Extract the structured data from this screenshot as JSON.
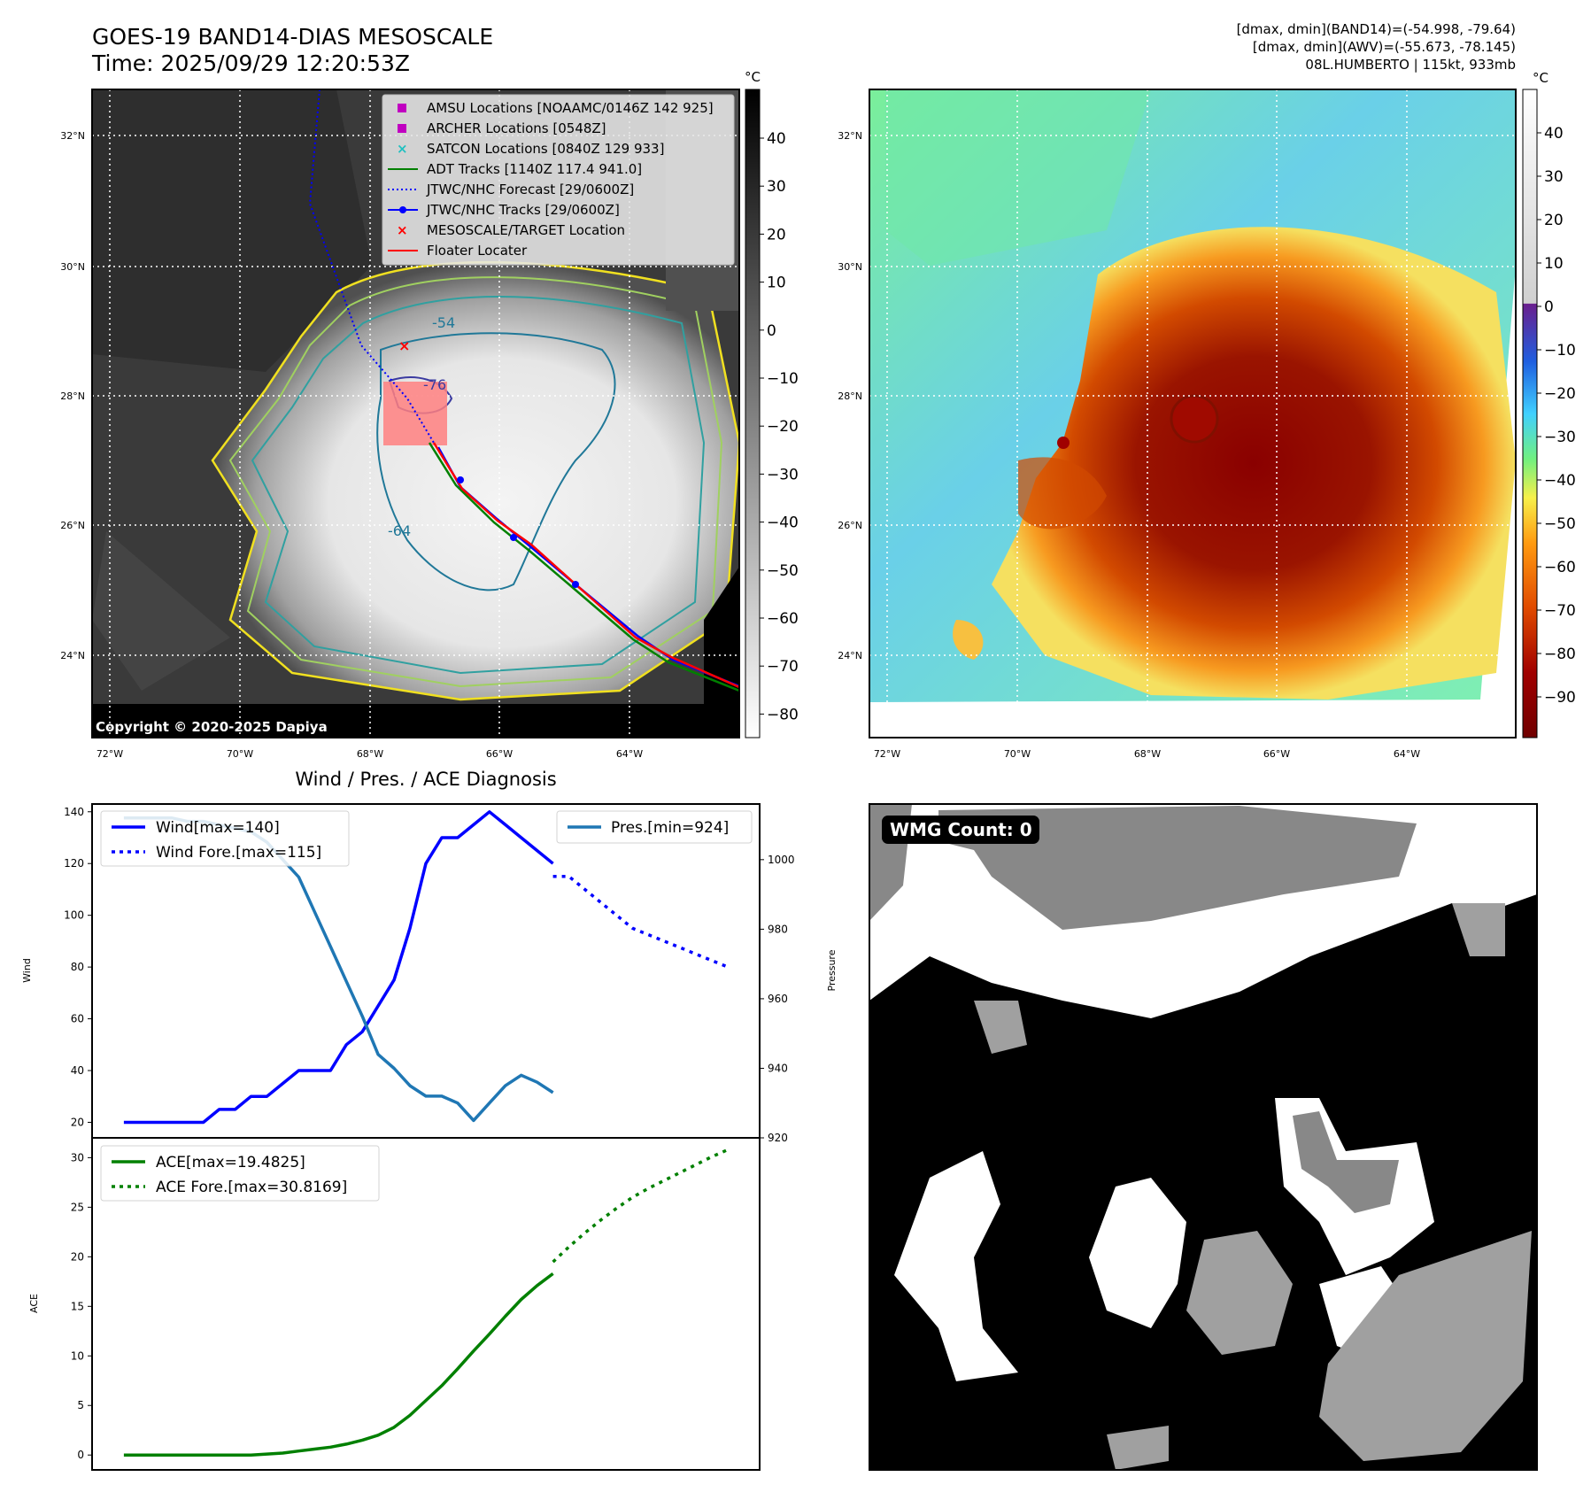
{
  "header": {
    "title_line1": "GOES-19 BAND14-DIAS MESOSCALE",
    "title_line2": "Time: 2025/09/29 12:20:53Z",
    "info_line1": "[dmax, dmin](BAND14)=(-54.998, -79.64)",
    "info_line2": "[dmax, dmin](AWV)=(-55.673, -78.145)",
    "info_line3": "08L.HUMBERTO | 115kt, 933mb",
    "copyright": "Copyright © 2020-2025 Dapiya"
  },
  "map": {
    "lat_ticks": [
      "32°N",
      "30°N",
      "28°N",
      "26°N",
      "24°N"
    ],
    "lon_ticks": [
      "72°W",
      "70°W",
      "68°W",
      "66°W",
      "64°W"
    ],
    "contour_labels": [
      "-54",
      "-76",
      "-64"
    ],
    "legend": [
      {
        "label": "AMSU Locations [NOAAMC/0146Z 142 925]",
        "color": "#c000c0",
        "marker": "square"
      },
      {
        "label": "ARCHER Locations [0548Z]",
        "color": "#c000c0",
        "marker": "square"
      },
      {
        "label": "SATCON Locations [0840Z 129 933]",
        "color": "#20c0c0",
        "marker": "x"
      },
      {
        "label": "ADT Tracks [1140Z 117.4 941.0]",
        "color": "#008000",
        "marker": "line"
      },
      {
        "label": "JTWC/NHC Forecast [29/0600Z]",
        "color": "#0000ff",
        "marker": "dotted"
      },
      {
        "label": "JTWC/NHC Tracks [29/0600Z]",
        "color": "#0000ff",
        "marker": "line-dot"
      },
      {
        "label": "MESOSCALE/TARGET Location",
        "color": "#ff0000",
        "marker": "x"
      },
      {
        "label": "Floater Locater",
        "color": "#ff0000",
        "marker": "line"
      }
    ]
  },
  "colorbar_gray": {
    "unit": "°C",
    "ticks": [
      "40",
      "30",
      "20",
      "10",
      "0",
      "−10",
      "−20",
      "−30",
      "−40",
      "−50",
      "−60",
      "−70",
      "−80"
    ]
  },
  "colorbar_color": {
    "unit": "°C",
    "ticks": [
      "40",
      "30",
      "20",
      "10",
      "0",
      "−10",
      "−20",
      "−30",
      "−40",
      "−50",
      "−60",
      "−70",
      "−80",
      "−90"
    ]
  },
  "wmg": {
    "label": "WMG Count: 0"
  },
  "chart_data": [
    {
      "type": "line",
      "title": "Wind / Pres. / ACE Diagnosis",
      "xlabel": "",
      "ylabel": "Wind",
      "ylabel_right": "Pressure",
      "ylim": [
        14,
        143
      ],
      "ylim_right": [
        920,
        1016
      ],
      "yticks": [
        "20",
        "40",
        "60",
        "80",
        "100",
        "120",
        "140"
      ],
      "yticks_right": [
        "920",
        "940",
        "960",
        "980",
        "1000"
      ],
      "xlim": [
        -2,
        40
      ],
      "series": [
        {
          "name": "Wind[max=140]",
          "color": "#0000ff",
          "style": "solid",
          "axis": "left",
          "x": [
            0,
            2,
            4,
            5,
            6,
            7,
            8,
            9,
            10,
            11,
            12,
            13,
            14,
            15,
            16,
            17,
            18,
            19,
            20,
            21,
            22,
            23,
            24,
            25,
            26,
            27
          ],
          "values": [
            20,
            20,
            20,
            20,
            25,
            25,
            30,
            30,
            35,
            40,
            40,
            40,
            50,
            55,
            65,
            75,
            95,
            120,
            130,
            130,
            135,
            140,
            135,
            130,
            125,
            120
          ]
        },
        {
          "name": "Wind Fore.[max=115]",
          "color": "#0000ff",
          "style": "dotted",
          "axis": "left",
          "x": [
            27,
            28,
            29,
            30,
            32,
            34,
            36,
            38
          ],
          "values": [
            115,
            115,
            110,
            105,
            95,
            90,
            85,
            80
          ]
        },
        {
          "name": "Pres.[min=924]",
          "color": "#1f77b4",
          "style": "solid",
          "axis": "right",
          "x": [
            0,
            1,
            2,
            3,
            4,
            5,
            6,
            7,
            8,
            9,
            10,
            11,
            12,
            13,
            14,
            15,
            16,
            17,
            18,
            19,
            20,
            21,
            22,
            23,
            24,
            25,
            26,
            27
          ],
          "values": [
            1012,
            1012,
            1012,
            1012,
            1011,
            1011,
            1010,
            1009,
            1008,
            1005,
            1000,
            995,
            985,
            975,
            965,
            955,
            944,
            940,
            935,
            932,
            932,
            930,
            925,
            930,
            935,
            938,
            936,
            933
          ]
        }
      ]
    },
    {
      "type": "line",
      "xlabel": "",
      "ylabel": "ACE",
      "ylim": [
        -1.5,
        32
      ],
      "yticks": [
        "0",
        "5",
        "10",
        "15",
        "20",
        "25",
        "30"
      ],
      "xlim": [
        -2,
        40
      ],
      "series": [
        {
          "name": "ACE[max=19.4825]",
          "color": "#008000",
          "style": "solid",
          "x": [
            0,
            2,
            4,
            6,
            8,
            9,
            10,
            11,
            12,
            13,
            14,
            15,
            16,
            17,
            18,
            19,
            20,
            21,
            22,
            23,
            24,
            25,
            26,
            27
          ],
          "values": [
            0,
            0,
            0,
            0,
            0,
            0.1,
            0.2,
            0.4,
            0.6,
            0.8,
            1.1,
            1.5,
            2.0,
            2.8,
            4.0,
            5.5,
            7.0,
            8.7,
            10.5,
            12.2,
            14.0,
            15.7,
            17.1,
            18.3
          ]
        },
        {
          "name": "ACE Fore.[max=30.8169]",
          "color": "#008000",
          "style": "dotted",
          "x": [
            27,
            28,
            29,
            30,
            31,
            32,
            33,
            34,
            35,
            36,
            37,
            38
          ],
          "values": [
            19.48,
            21.0,
            22.4,
            23.7,
            24.9,
            26.0,
            26.9,
            27.7,
            28.5,
            29.3,
            30.1,
            30.8
          ]
        }
      ]
    }
  ]
}
